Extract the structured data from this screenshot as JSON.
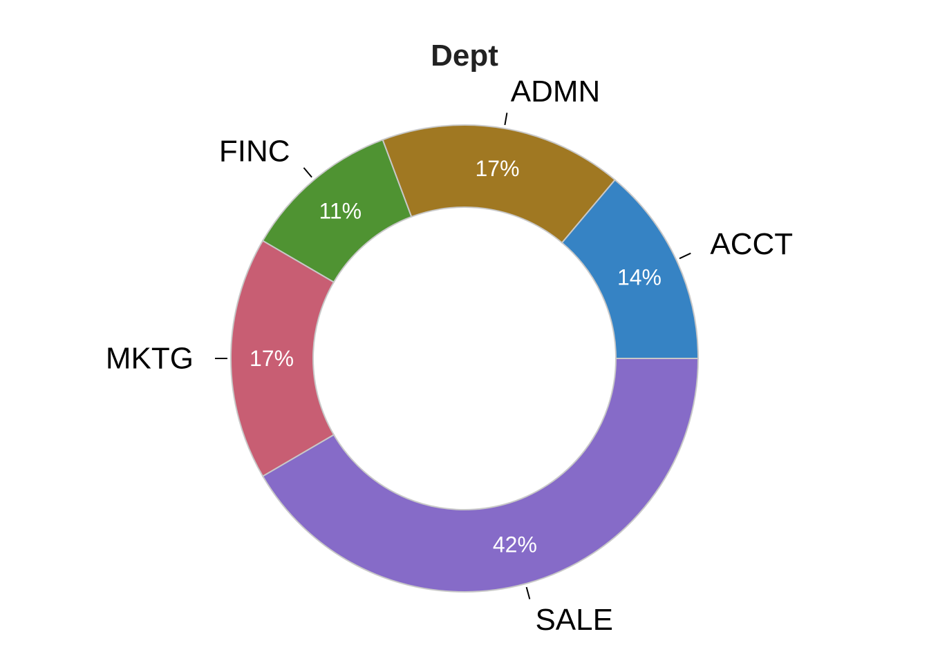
{
  "chart_data": {
    "type": "pie",
    "style": "donut",
    "title": "Dept",
    "start_angle": "3 o'clock, clockwise",
    "slices": [
      {
        "label": "SALE",
        "value": 42,
        "pct_label": "42%",
        "color": "#866BC8"
      },
      {
        "label": "MKTG",
        "value": 17,
        "pct_label": "17%",
        "color": "#C85E73"
      },
      {
        "label": "FINC",
        "value": 11,
        "pct_label": "11%",
        "color": "#4F9332"
      },
      {
        "label": "ADMN",
        "value": 17,
        "pct_label": "17%",
        "color": "#A07822"
      },
      {
        "label": "ACCT",
        "value": 14,
        "pct_label": "14%",
        "color": "#3683C4"
      }
    ]
  }
}
